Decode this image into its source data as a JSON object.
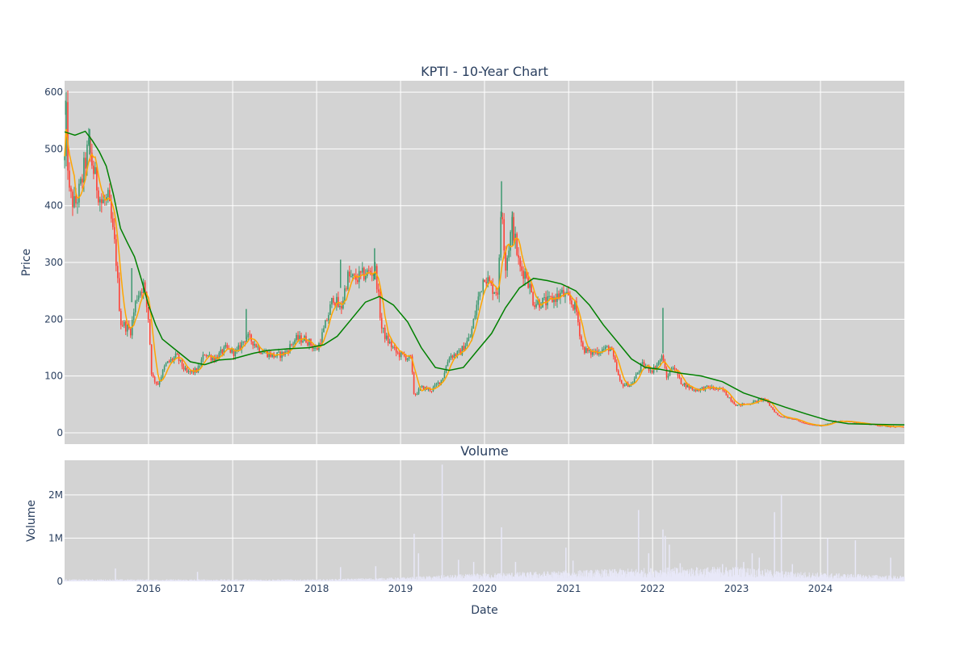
{
  "chart_data": [
    {
      "type": "candlestick",
      "title": "KPTI - 10-Year Chart",
      "xlabel": "",
      "ylabel": "Price",
      "xlim": [
        "2015-01-01",
        "2024-12-31"
      ],
      "ylim": [
        -20,
        620
      ],
      "yticks": [
        0,
        100,
        200,
        300,
        400,
        500,
        600
      ],
      "grid": true,
      "background": "#d3d3d3",
      "colors": {
        "up": "#3d9970",
        "down": "#ff4136",
        "ma_short": "#ffa500",
        "ma_long": "#008000"
      },
      "price_path": [
        [
          "2015-01-01",
          480
        ],
        [
          "2015-01-05",
          590
        ],
        [
          "2015-01-20",
          420
        ],
        [
          "2015-02-15",
          400
        ],
        [
          "2015-03-10",
          430
        ],
        [
          "2015-04-15",
          505
        ],
        [
          "2015-05-10",
          455
        ],
        [
          "2015-06-10",
          405
        ],
        [
          "2015-07-10",
          410
        ],
        [
          "2015-08-10",
          320
        ],
        [
          "2015-09-01",
          195
        ],
        [
          "2015-10-15",
          180
        ],
        [
          "2015-11-10",
          240
        ],
        [
          "2015-12-10",
          260
        ],
        [
          "2016-01-01",
          200
        ],
        [
          "2016-01-15",
          100
        ],
        [
          "2016-02-10",
          85
        ],
        [
          "2016-03-15",
          120
        ],
        [
          "2016-05-01",
          135
        ],
        [
          "2016-06-15",
          105
        ],
        [
          "2016-08-01",
          110
        ],
        [
          "2016-09-01",
          140
        ],
        [
          "2016-10-15",
          130
        ],
        [
          "2016-12-01",
          148
        ],
        [
          "2017-01-15",
          140
        ],
        [
          "2017-03-01",
          170
        ],
        [
          "2017-04-01",
          160
        ],
        [
          "2017-05-01",
          145
        ],
        [
          "2017-07-01",
          135
        ],
        [
          "2017-08-15",
          140
        ],
        [
          "2017-10-01",
          165
        ],
        [
          "2017-11-15",
          165
        ],
        [
          "2018-01-01",
          145
        ],
        [
          "2018-02-01",
          180
        ],
        [
          "2018-03-15",
          240
        ],
        [
          "2018-04-15",
          215
        ],
        [
          "2018-05-15",
          275
        ],
        [
          "2018-06-15",
          270
        ],
        [
          "2018-08-01",
          280
        ],
        [
          "2018-09-15",
          285
        ],
        [
          "2018-10-10",
          185
        ],
        [
          "2018-11-01",
          165
        ],
        [
          "2018-12-15",
          140
        ],
        [
          "2019-02-15",
          130
        ],
        [
          "2019-03-01",
          65
        ],
        [
          "2019-04-01",
          80
        ],
        [
          "2019-05-15",
          75
        ],
        [
          "2019-07-01",
          95
        ],
        [
          "2019-08-01",
          135
        ],
        [
          "2019-09-15",
          140
        ],
        [
          "2019-11-01",
          170
        ],
        [
          "2019-12-01",
          230
        ],
        [
          "2020-01-01",
          280
        ],
        [
          "2020-02-01",
          255
        ],
        [
          "2020-03-01",
          250
        ],
        [
          "2020-03-15",
          420
        ],
        [
          "2020-04-01",
          290
        ],
        [
          "2020-05-01",
          370
        ],
        [
          "2020-06-01",
          290
        ],
        [
          "2020-07-01",
          280
        ],
        [
          "2020-08-01",
          230
        ],
        [
          "2020-10-01",
          230
        ],
        [
          "2020-12-01",
          245
        ],
        [
          "2021-01-01",
          235
        ],
        [
          "2021-02-01",
          220
        ],
        [
          "2021-03-01",
          150
        ],
        [
          "2021-04-01",
          140
        ],
        [
          "2021-05-15",
          145
        ],
        [
          "2021-07-01",
          150
        ],
        [
          "2021-08-15",
          85
        ],
        [
          "2021-10-01",
          85
        ],
        [
          "2021-11-15",
          120
        ],
        [
          "2022-01-01",
          110
        ],
        [
          "2022-02-15",
          135
        ],
        [
          "2022-03-01",
          95
        ],
        [
          "2022-04-01",
          120
        ],
        [
          "2022-05-01",
          90
        ],
        [
          "2022-07-01",
          75
        ],
        [
          "2022-09-01",
          80
        ],
        [
          "2022-11-01",
          75
        ],
        [
          "2023-01-01",
          48
        ],
        [
          "2023-03-01",
          52
        ],
        [
          "2023-05-01",
          60
        ],
        [
          "2023-07-01",
          30
        ],
        [
          "2023-09-01",
          25
        ],
        [
          "2023-11-01",
          15
        ],
        [
          "2024-01-01",
          12
        ],
        [
          "2024-03-01",
          20
        ],
        [
          "2024-05-01",
          20
        ],
        [
          "2024-08-01",
          15
        ],
        [
          "2024-10-01",
          12
        ],
        [
          "2024-12-31",
          10
        ]
      ],
      "ma_long_path": [
        [
          "2015-01-01",
          530
        ],
        [
          "2015-02-15",
          524
        ],
        [
          "2015-04-01",
          531
        ],
        [
          "2015-05-01",
          515
        ],
        [
          "2015-06-01",
          495
        ],
        [
          "2015-07-01",
          470
        ],
        [
          "2015-08-01",
          420
        ],
        [
          "2015-09-01",
          360
        ],
        [
          "2015-10-01",
          335
        ],
        [
          "2015-11-01",
          310
        ],
        [
          "2015-12-01",
          270
        ],
        [
          "2016-01-01",
          225
        ],
        [
          "2016-02-01",
          190
        ],
        [
          "2016-03-01",
          165
        ],
        [
          "2016-05-01",
          145
        ],
        [
          "2016-07-01",
          125
        ],
        [
          "2016-09-01",
          120
        ],
        [
          "2016-11-01",
          128
        ],
        [
          "2017-01-01",
          130
        ],
        [
          "2017-04-01",
          140
        ],
        [
          "2017-06-01",
          145
        ],
        [
          "2017-09-01",
          148
        ],
        [
          "2017-12-01",
          150
        ],
        [
          "2018-02-01",
          155
        ],
        [
          "2018-04-01",
          170
        ],
        [
          "2018-06-01",
          200
        ],
        [
          "2018-08-01",
          230
        ],
        [
          "2018-10-01",
          240
        ],
        [
          "2018-12-01",
          225
        ],
        [
          "2019-02-01",
          195
        ],
        [
          "2019-04-01",
          150
        ],
        [
          "2019-06-01",
          115
        ],
        [
          "2019-08-01",
          110
        ],
        [
          "2019-10-01",
          115
        ],
        [
          "2019-12-01",
          145
        ],
        [
          "2020-02-01",
          175
        ],
        [
          "2020-04-01",
          220
        ],
        [
          "2020-06-01",
          255
        ],
        [
          "2020-08-01",
          272
        ],
        [
          "2020-10-01",
          268
        ],
        [
          "2020-12-01",
          262
        ],
        [
          "2021-02-01",
          250
        ],
        [
          "2021-04-01",
          225
        ],
        [
          "2021-06-01",
          190
        ],
        [
          "2021-08-01",
          160
        ],
        [
          "2021-10-01",
          130
        ],
        [
          "2021-12-01",
          115
        ],
        [
          "2022-02-01",
          112
        ],
        [
          "2022-05-01",
          105
        ],
        [
          "2022-08-01",
          100
        ],
        [
          "2022-11-01",
          90
        ],
        [
          "2023-02-01",
          70
        ],
        [
          "2023-05-01",
          58
        ],
        [
          "2023-08-01",
          45
        ],
        [
          "2023-11-01",
          33
        ],
        [
          "2024-02-01",
          22
        ],
        [
          "2024-05-01",
          16
        ],
        [
          "2024-08-01",
          15
        ],
        [
          "2024-12-31",
          14
        ]
      ],
      "spikes": [
        [
          "2015-01-06",
          585,
          560
        ],
        [
          "2015-04-20",
          535,
          490
        ],
        [
          "2015-10-20",
          290,
          230
        ],
        [
          "2017-03-01",
          218,
          165
        ],
        [
          "2018-04-15",
          305,
          255
        ],
        [
          "2018-09-10",
          325,
          270
        ],
        [
          "2020-03-15",
          443,
          380
        ],
        [
          "2020-05-01",
          390,
          330
        ],
        [
          "2022-02-15",
          220,
          140
        ]
      ]
    },
    {
      "type": "bar",
      "title": "Volume",
      "xlabel": "Date",
      "ylabel": "Volume",
      "xlim": [
        "2015-01-01",
        "2024-12-31"
      ],
      "ylim": [
        0,
        2800000
      ],
      "yticks": [
        0,
        1000000,
        2000000
      ],
      "ytick_labels": [
        "0",
        "1M",
        "2M"
      ],
      "xtick_labels": [
        "2016",
        "2017",
        "2018",
        "2019",
        "2020",
        "2021",
        "2022",
        "2023",
        "2024"
      ],
      "grid": true,
      "background": "#d3d3d3",
      "bar_color": "#e8e8f8",
      "baseline_path": [
        [
          "2015-01-01",
          30000
        ],
        [
          "2018-01-01",
          30000
        ],
        [
          "2019-01-01",
          60000
        ],
        [
          "2020-01-01",
          120000
        ],
        [
          "2021-01-01",
          160000
        ],
        [
          "2022-01-01",
          200000
        ],
        [
          "2023-01-01",
          220000
        ],
        [
          "2023-08-01",
          150000
        ],
        [
          "2024-12-31",
          80000
        ]
      ],
      "spikes": [
        [
          "2015-08-10",
          300000
        ],
        [
          "2016-08-01",
          220000
        ],
        [
          "2018-04-15",
          330000
        ],
        [
          "2018-09-15",
          350000
        ],
        [
          "2019-03-01",
          1100000
        ],
        [
          "2019-03-20",
          650000
        ],
        [
          "2019-07-01",
          2700000
        ],
        [
          "2019-09-10",
          500000
        ],
        [
          "2019-11-15",
          450000
        ],
        [
          "2020-03-15",
          1250000
        ],
        [
          "2020-05-15",
          450000
        ],
        [
          "2020-12-20",
          780000
        ],
        [
          "2021-01-20",
          480000
        ],
        [
          "2021-11-01",
          1650000
        ],
        [
          "2021-12-15",
          650000
        ],
        [
          "2022-02-15",
          1200000
        ],
        [
          "2022-02-25",
          1050000
        ],
        [
          "2022-03-15",
          850000
        ],
        [
          "2022-05-01",
          420000
        ],
        [
          "2022-11-01",
          400000
        ],
        [
          "2023-01-01",
          500000
        ],
        [
          "2023-02-01",
          450000
        ],
        [
          "2023-03-10",
          650000
        ],
        [
          "2023-04-10",
          550000
        ],
        [
          "2023-06-15",
          1600000
        ],
        [
          "2023-07-15",
          2000000
        ],
        [
          "2023-09-01",
          400000
        ],
        [
          "2024-02-01",
          1000000
        ],
        [
          "2024-06-01",
          950000
        ],
        [
          "2024-11-01",
          550000
        ]
      ]
    }
  ]
}
